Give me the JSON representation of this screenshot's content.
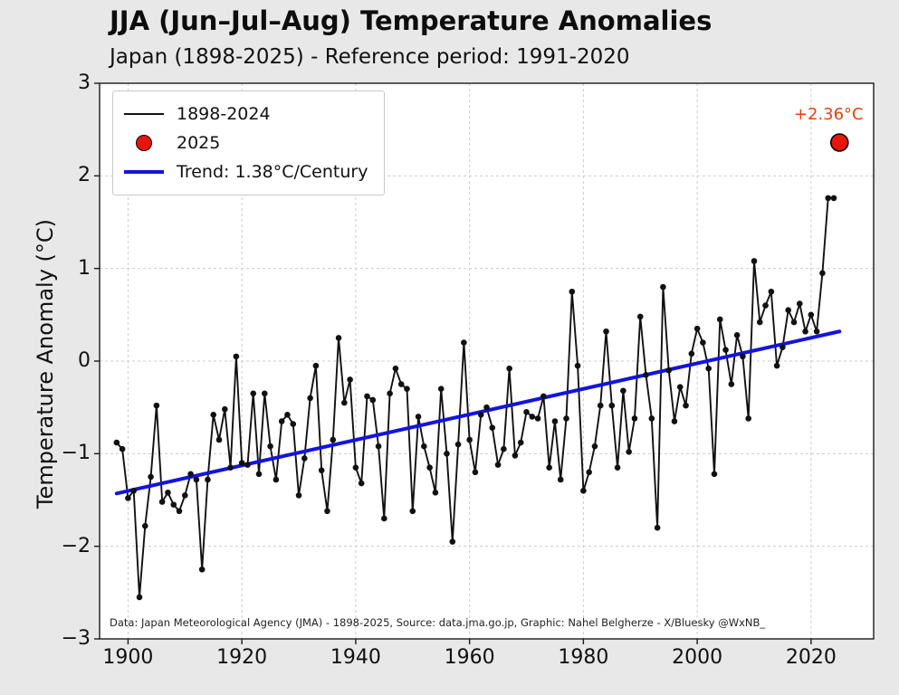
{
  "header": {
    "title": "JJA (Jun–Jul–Aug) Temperature Anomalies",
    "subtitle": "Japan (1898-2025) - Reference period: 1991-2020"
  },
  "ylabel": "Temperature Anomaly (°C)",
  "footer": "Data: Japan Meteorological Agency (JMA) - 1898-2025, Source: data.jma.go.jp, Graphic: Nahel Belgherze - X/Bluesky @WxNB_",
  "annotation": "+2.36°C",
  "legend": {
    "items": [
      {
        "label": "1898-2024",
        "sample": "black-line"
      },
      {
        "label": "2025",
        "sample": "red-dot"
      },
      {
        "label": "Trend: 1.38°C/Century",
        "sample": "blue-line"
      }
    ]
  },
  "colors": {
    "line": "#111111",
    "trend": "#1414dc",
    "dot_fill": "#e8150d",
    "dot_edge": "#000000",
    "annotation": "#e0430e",
    "grid": "#cccccc",
    "spine": "#1a1a1a",
    "background": "#e8e8e8",
    "plot_bg": "#ffffff"
  },
  "chart_data": {
    "type": "line",
    "title": "JJA (Jun–Jul–Aug) Temperature Anomalies",
    "subtitle": "Japan (1898-2025) - Reference period: 1991-2020",
    "xlabel": "",
    "ylabel": "Temperature Anomaly (°C)",
    "xlim": [
      1895,
      2031
    ],
    "ylim": [
      -3,
      3
    ],
    "xticks": [
      1900,
      1920,
      1940,
      1960,
      1980,
      2000,
      2020
    ],
    "yticks": [
      -3,
      -2,
      -1,
      0,
      1,
      2,
      3
    ],
    "grid": true,
    "legend_position": "upper-left",
    "series": [
      {
        "name": "1898-2024",
        "start_year": 1898,
        "values": [
          -0.88,
          -0.95,
          -1.48,
          -1.4,
          -2.55,
          -1.78,
          -1.25,
          -0.48,
          -1.52,
          -1.42,
          -1.55,
          -1.62,
          -1.45,
          -1.22,
          -1.28,
          -2.25,
          -1.28,
          -0.58,
          -0.85,
          -0.52,
          -1.15,
          0.05,
          -1.1,
          -1.12,
          -0.35,
          -1.22,
          -0.35,
          -0.92,
          -1.28,
          -0.65,
          -0.58,
          -0.68,
          -1.45,
          -1.05,
          -0.4,
          -0.05,
          -1.18,
          -1.62,
          -0.85,
          0.25,
          -0.45,
          -0.2,
          -1.15,
          -1.32,
          -0.38,
          -0.42,
          -0.92,
          -1.7,
          -0.35,
          -0.08,
          -0.25,
          -0.3,
          -1.62,
          -0.6,
          -0.92,
          -1.15,
          -1.42,
          -0.3,
          -1.0,
          -1.95,
          -0.9,
          0.2,
          -0.85,
          -1.2,
          -0.58,
          -0.5,
          -0.72,
          -1.12,
          -0.95,
          -0.08,
          -1.02,
          -0.88,
          -0.55,
          -0.6,
          -0.62,
          -0.38,
          -1.15,
          -0.65,
          -1.28,
          -0.62,
          0.75,
          -0.05,
          -1.4,
          -1.2,
          -0.92,
          -0.48,
          0.32,
          -0.48,
          -1.15,
          -0.32,
          -0.98,
          -0.62,
          0.48,
          -0.15,
          -0.62,
          -1.8,
          0.8,
          -0.1,
          -0.65,
          -0.28,
          -0.48,
          0.08,
          0.35,
          0.2,
          -0.08,
          -1.22,
          0.45,
          0.12,
          -0.25,
          0.28,
          0.05,
          -0.62,
          1.08,
          0.42,
          0.6,
          0.75,
          -0.05,
          0.15,
          0.55,
          0.42,
          0.62,
          0.32,
          0.5,
          0.32,
          0.95,
          1.76,
          1.76
        ]
      }
    ],
    "highlight_point": {
      "name": "2025",
      "year": 2025,
      "value": 2.36,
      "label": "+2.36°C"
    },
    "trend": {
      "label": "Trend: 1.38°C/Century",
      "slope_per_century": 1.38,
      "start": {
        "year": 1898,
        "value": -1.43
      },
      "end": {
        "year": 2025,
        "value": 0.32
      }
    }
  }
}
